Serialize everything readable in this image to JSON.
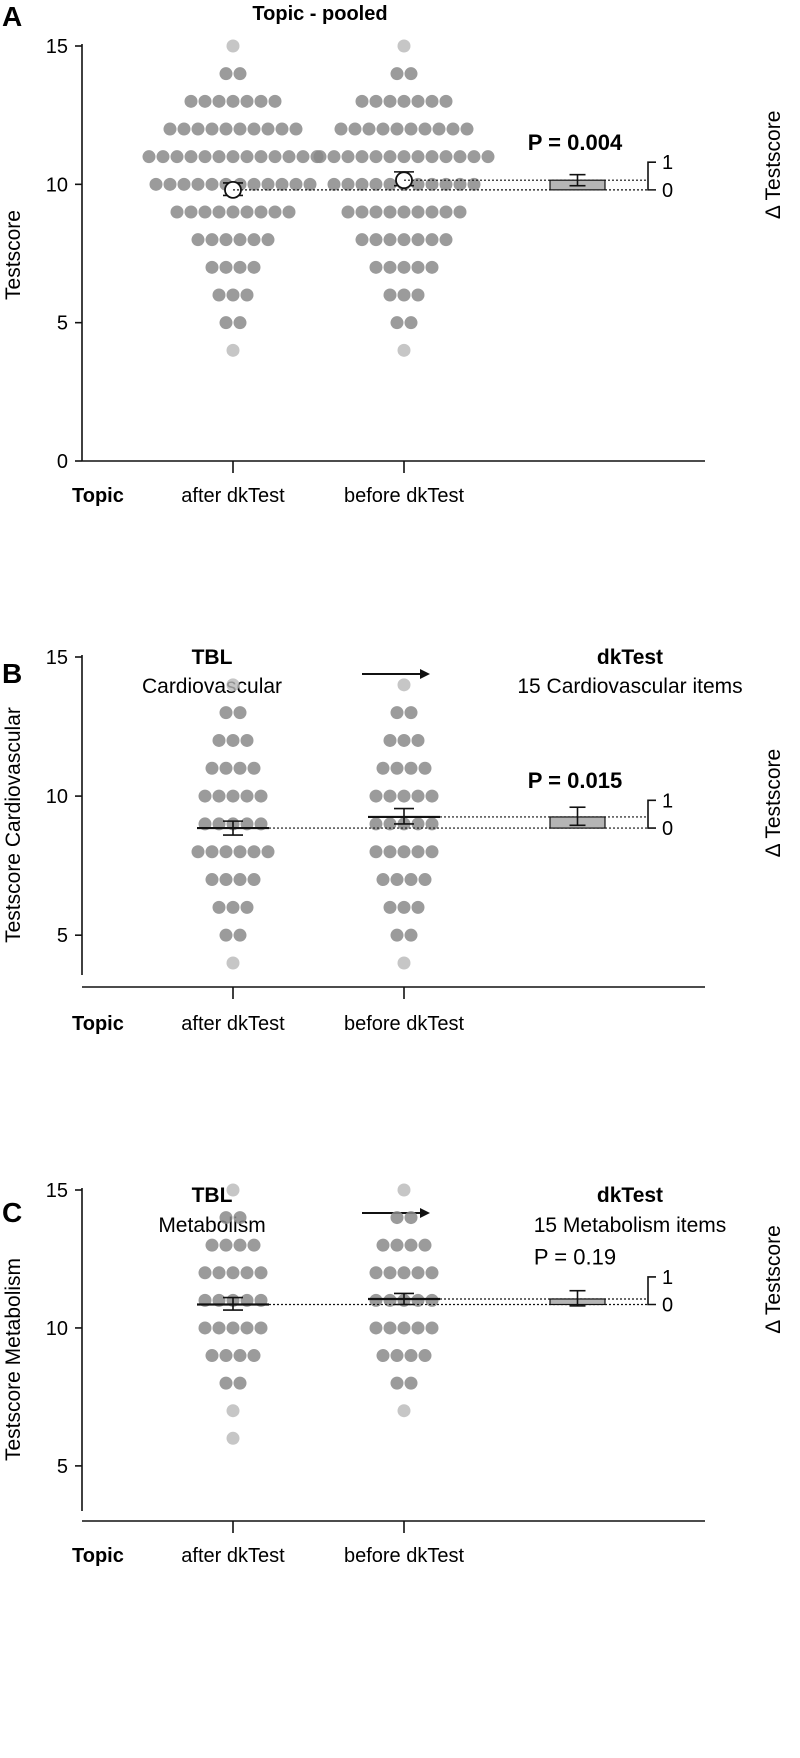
{
  "colors": {
    "dots": "#8a8a8a",
    "dots_light": "#b8b8b8",
    "axis": "#111111",
    "diff_bar": "#b5b5b5"
  },
  "chart_data": [
    {
      "panel": "A",
      "type": "scatter",
      "title": "Topic - pooled",
      "header": null,
      "ylabel": "Testscore",
      "ylim": [
        0,
        15
      ],
      "yticks": [
        0,
        5,
        10,
        15
      ],
      "x_axis_label": "Topic",
      "categories": [
        "after dkTest",
        "before dkTest"
      ],
      "mean_marker": "circle",
      "groups": [
        {
          "name": "after dkTest",
          "mean": 9.8,
          "ci": [
            9.6,
            10.05
          ],
          "distribution": [
            [
              4,
              1
            ],
            [
              5,
              2
            ],
            [
              6,
              3
            ],
            [
              7,
              4
            ],
            [
              8,
              6
            ],
            [
              9,
              9
            ],
            [
              10,
              12
            ],
            [
              11,
              13
            ],
            [
              12,
              10
            ],
            [
              13,
              7
            ],
            [
              14,
              2
            ],
            [
              15,
              1
            ]
          ]
        },
        {
          "name": "before dkTest",
          "mean": 10.15,
          "ci": [
            9.95,
            10.45
          ],
          "distribution": [
            [
              4,
              1
            ],
            [
              5,
              2
            ],
            [
              6,
              3
            ],
            [
              7,
              5
            ],
            [
              8,
              7
            ],
            [
              9,
              9
            ],
            [
              10,
              11
            ],
            [
              11,
              13
            ],
            [
              12,
              10
            ],
            [
              13,
              7
            ],
            [
              14,
              2
            ],
            [
              15,
              1
            ]
          ]
        }
      ],
      "difference": {
        "p_text": "P = 0.004",
        "p_bold": true,
        "value": 0.35,
        "ci": [
          0.15,
          0.55
        ],
        "right_axis_label": "Δ Testscore",
        "right_ticks": [
          "0",
          "1"
        ]
      }
    },
    {
      "panel": "B",
      "type": "scatter",
      "title": "",
      "header": {
        "left_bold": "TBL",
        "left_sub": "Cardiovascular",
        "right_bold": "dkTest",
        "right_sub": "15 Cardiovascular items"
      },
      "ylabel": "Testscore Cardiovascular",
      "ylim": [
        4,
        15
      ],
      "yticks": [
        5,
        10,
        15
      ],
      "x_axis_label": "Topic",
      "categories": [
        "after dkTest",
        "before dkTest"
      ],
      "mean_marker": "line",
      "groups": [
        {
          "name": "after dkTest",
          "mean": 8.85,
          "ci": [
            8.6,
            9.1
          ],
          "distribution": [
            [
              4,
              1
            ],
            [
              5,
              2
            ],
            [
              6,
              3
            ],
            [
              7,
              4
            ],
            [
              8,
              6
            ],
            [
              9,
              5
            ],
            [
              10,
              5
            ],
            [
              11,
              4
            ],
            [
              12,
              3
            ],
            [
              13,
              2
            ],
            [
              14,
              1
            ]
          ]
        },
        {
          "name": "before dkTest",
          "mean": 9.25,
          "ci": [
            9.0,
            9.55
          ],
          "distribution": [
            [
              4,
              1
            ],
            [
              5,
              2
            ],
            [
              6,
              3
            ],
            [
              7,
              4
            ],
            [
              8,
              5
            ],
            [
              9,
              5
            ],
            [
              10,
              5
            ],
            [
              11,
              4
            ],
            [
              12,
              3
            ],
            [
              13,
              2
            ],
            [
              14,
              1
            ]
          ]
        }
      ],
      "difference": {
        "p_text": "P = 0.015",
        "p_bold": true,
        "value": 0.4,
        "ci": [
          0.1,
          0.75
        ],
        "right_axis_label": "Δ Testscore",
        "right_ticks": [
          "0",
          "1"
        ]
      }
    },
    {
      "panel": "C",
      "type": "scatter",
      "title": "",
      "header": {
        "left_bold": "TBL",
        "left_sub": "Metabolism",
        "right_bold": "dkTest",
        "right_sub": "15 Metabolism items"
      },
      "ylabel": "Testscore Metabolism",
      "ylim": [
        3.8,
        15
      ],
      "yticks": [
        5,
        10,
        15
      ],
      "x_axis_label": "Topic",
      "categories": [
        "after dkTest",
        "before dkTest"
      ],
      "mean_marker": "line",
      "groups": [
        {
          "name": "after dkTest",
          "mean": 10.85,
          "ci": [
            10.65,
            11.1
          ],
          "distribution": [
            [
              6,
              1
            ],
            [
              7,
              1
            ],
            [
              8,
              2
            ],
            [
              9,
              4
            ],
            [
              10,
              5
            ],
            [
              11,
              5
            ],
            [
              12,
              5
            ],
            [
              13,
              4
            ],
            [
              14,
              2
            ],
            [
              15,
              1
            ]
          ]
        },
        {
          "name": "before dkTest",
          "mean": 11.05,
          "ci": [
            10.85,
            11.25
          ],
          "distribution": [
            [
              7,
              1
            ],
            [
              8,
              2
            ],
            [
              9,
              4
            ],
            [
              10,
              5
            ],
            [
              11,
              5
            ],
            [
              12,
              5
            ],
            [
              13,
              4
            ],
            [
              14,
              2
            ],
            [
              15,
              1
            ]
          ]
        }
      ],
      "difference": {
        "p_text": "P = 0.19",
        "p_bold": false,
        "value": 0.2,
        "ci": [
          -0.05,
          0.5
        ],
        "right_axis_label": "Δ Testscore",
        "right_ticks": [
          "0",
          "1"
        ]
      }
    }
  ]
}
